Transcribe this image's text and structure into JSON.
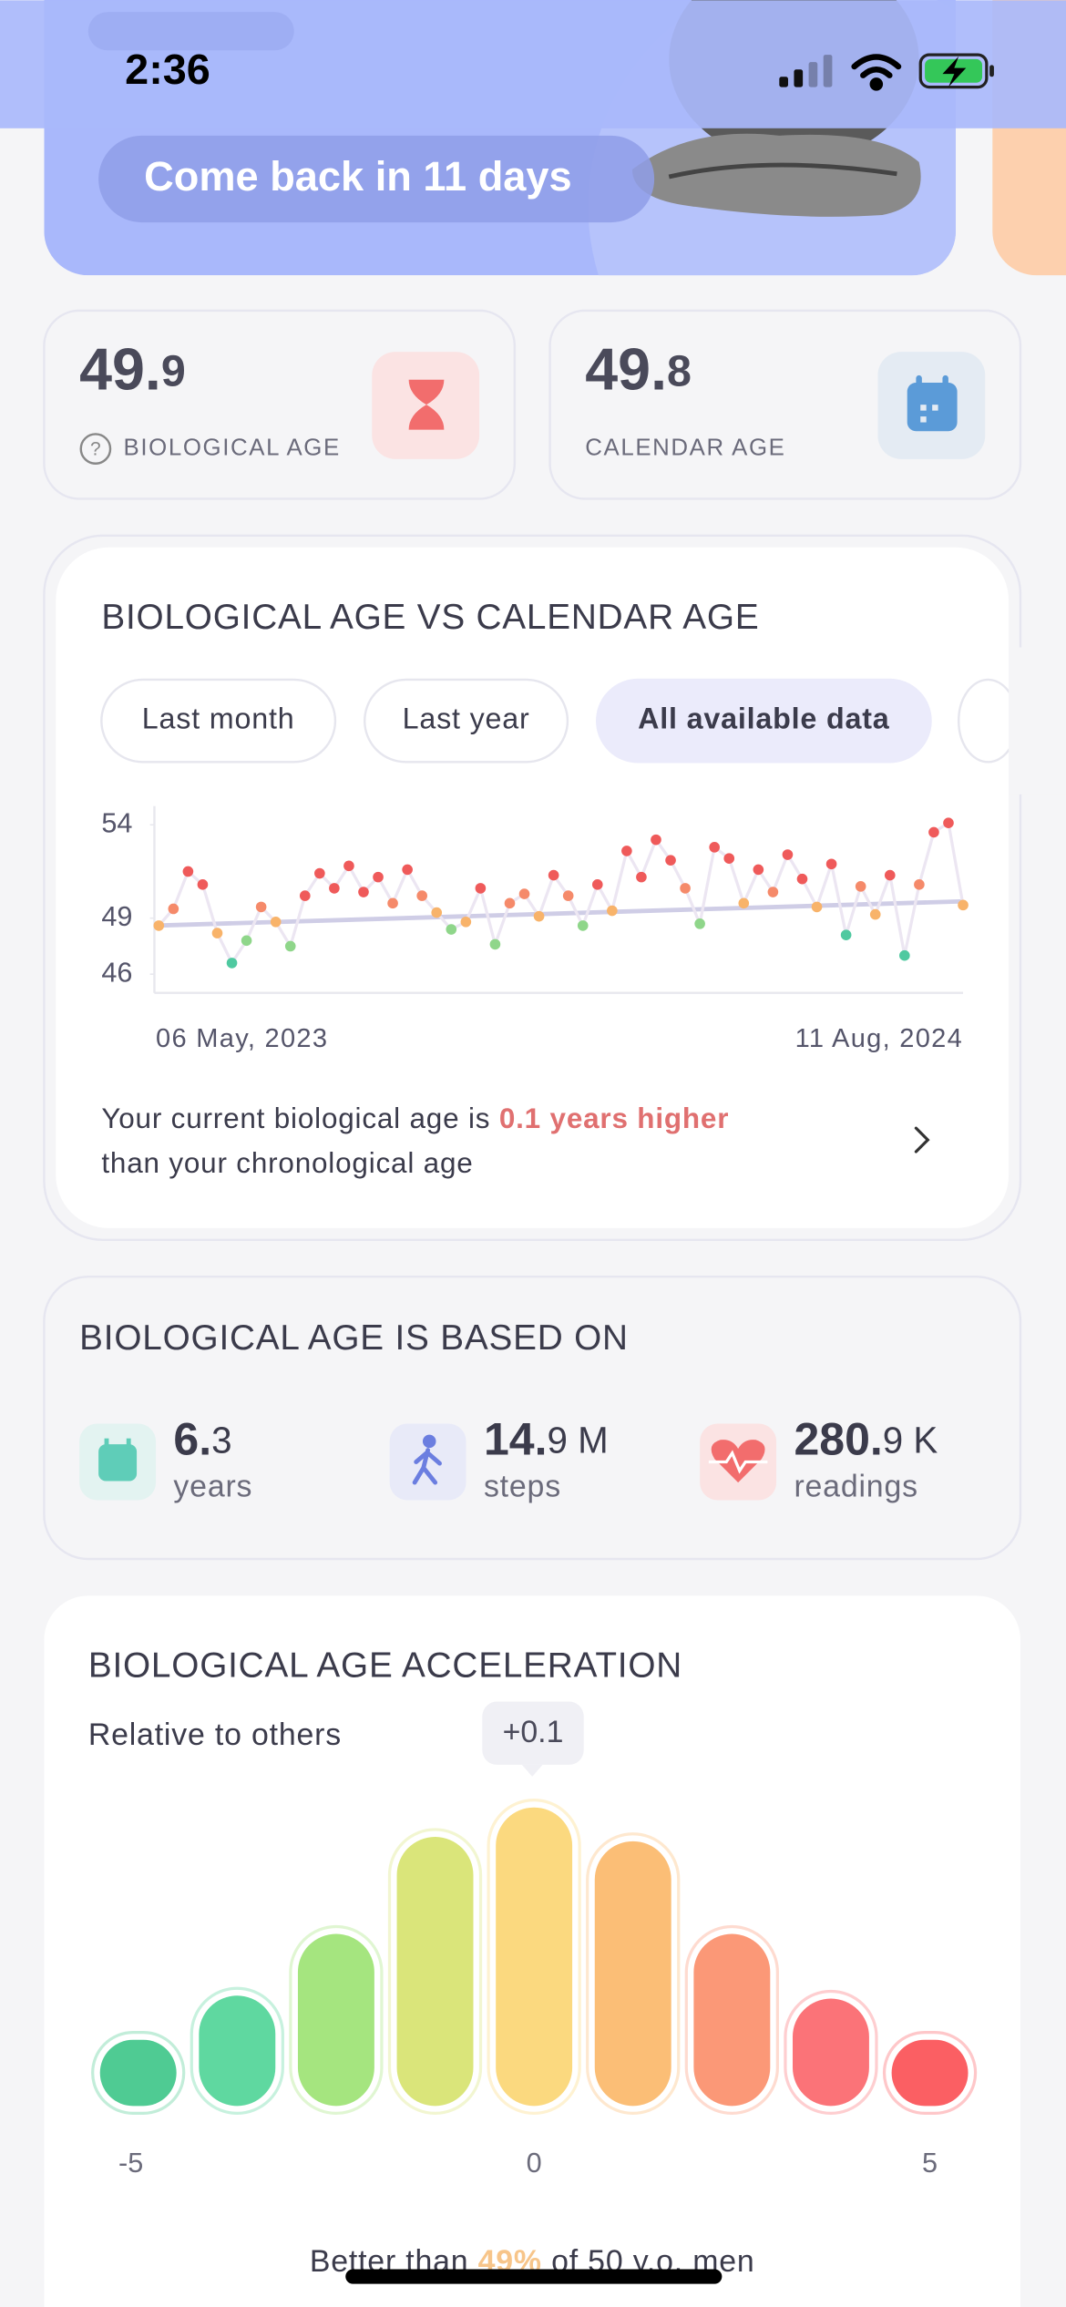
{
  "status_bar": {
    "time": "2:36"
  },
  "banner": {
    "button": "Come back in 11 days"
  },
  "age_cards": [
    {
      "value_int": "49.",
      "value_dec": "9",
      "label": "BIOLOGICAL AGE"
    },
    {
      "value_int": "49.",
      "value_dec": "8",
      "label": "CALENDAR AGE"
    }
  ],
  "trend_card": {
    "title": "BIOLOGICAL AGE VS CALENDAR AGE",
    "filters": [
      "Last month",
      "Last year",
      "All available data"
    ],
    "selected_filter": 2,
    "summary_prefix": "Your current biological age is ",
    "summary_highlight": "0.1 years higher",
    "summary_suffix": "than your chronological age"
  },
  "basis": {
    "title": "BIOLOGICAL AGE IS BASED ON",
    "stats": [
      {
        "value_int": "6.",
        "value_dec": "3",
        "unit": "years"
      },
      {
        "value_int": "14.",
        "value_dec": "9 M",
        "unit": "steps"
      },
      {
        "value_int": "280.",
        "value_dec": "9 K",
        "unit": "readings"
      }
    ]
  },
  "acceleration": {
    "title": "BIOLOGICAL AGE ACCELERATION",
    "subtitle": "Relative to others",
    "marker": "+0.1",
    "footer_prefix": "Better than ",
    "footer_highlight": "49%",
    "footer_suffix": " of 50 y.o. men"
  },
  "chart_data": [
    {
      "type": "scatter",
      "categories": [
        "06 May, 2023",
        null,
        null,
        null,
        null,
        null,
        null,
        null,
        null,
        null,
        null,
        null,
        null,
        null,
        null,
        null,
        null,
        null,
        null,
        null,
        null,
        null,
        null,
        null,
        null,
        null,
        null,
        null,
        null,
        null,
        null,
        null,
        null,
        null,
        null,
        null,
        null,
        null,
        null,
        null,
        null,
        null,
        null,
        null,
        null,
        null,
        null,
        null,
        null,
        null,
        null,
        null,
        null,
        null,
        null,
        "11 Aug, 2024"
      ],
      "values": [
        48.6,
        49.5,
        51.5,
        50.8,
        48.2,
        46.6,
        47.8,
        49.6,
        48.8,
        47.5,
        50.2,
        51.4,
        50.6,
        51.8,
        50.4,
        51.2,
        49.8,
        51.6,
        50.2,
        49.3,
        48.4,
        48.8,
        50.6,
        47.6,
        49.8,
        50.3,
        49.1,
        51.3,
        50.2,
        48.6,
        50.8,
        49.4,
        52.6,
        51.2,
        53.2,
        52.1,
        50.6,
        48.7,
        52.8,
        52.2,
        49.8,
        51.6,
        50.4,
        52.4,
        51.1,
        49.6,
        51.9,
        48.1,
        50.7,
        49.2,
        51.3,
        47.0,
        50.8,
        53.6,
        54.1,
        49.7
      ],
      "trend": [
        48.6,
        49.9
      ],
      "ylim": [
        45,
        55
      ],
      "yticks": [
        46,
        49,
        54
      ]
    },
    {
      "type": "bar",
      "categories": [
        "-5",
        null,
        null,
        null,
        "0",
        null,
        null,
        null,
        "5"
      ],
      "values": [
        4.5,
        7.5,
        11.7,
        18.3,
        20.3,
        18.0,
        11.7,
        7.3,
        4.5
      ],
      "colors": [
        "#4fcb93",
        "#5fd8a0",
        "#a5e57f",
        "#dae57a",
        "#fbd97f",
        "#fbbe76",
        "#fb9877",
        "#fb7378",
        "#fb5f63"
      ],
      "ylim": [
        0,
        21
      ]
    }
  ]
}
